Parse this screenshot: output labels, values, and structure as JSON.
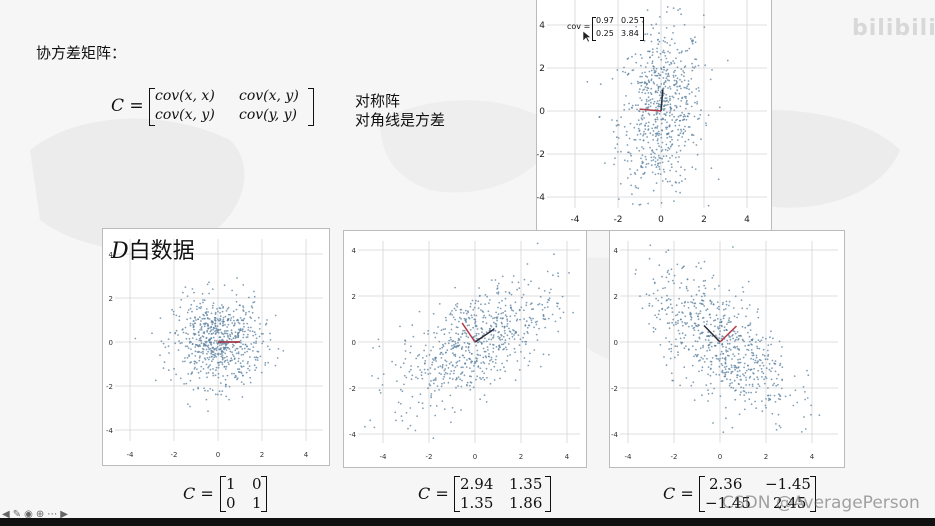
{
  "slide": {
    "heading": "协方差矩阵：",
    "cov_matrix": {
      "lhs": "C =",
      "rows": [
        [
          "cov(x, x)",
          "cov(x, y)"
        ],
        [
          "cov(x, y)",
          "cov(y, y)"
        ]
      ]
    },
    "notes": [
      "对称阵",
      "对角线是方差"
    ],
    "white_title_letter": "D",
    "white_title_text": "白数据",
    "logo": "bilibili",
    "watermark": "CSDN @AveragePerson"
  },
  "top_plot": {
    "cov_prefix": "cov =",
    "cov_values": [
      [
        "0.97",
        "0.25"
      ],
      [
        "0.25",
        "3.84"
      ]
    ],
    "x_ticks": [
      "-4",
      "-2",
      "0",
      "2",
      "4"
    ],
    "y_ticks": [
      "4",
      "2",
      "0",
      "-2",
      "-4"
    ]
  },
  "plots": [
    {
      "matrix_lhs": "C =",
      "matrix": [
        [
          "1",
          "0"
        ],
        [
          "0",
          "1"
        ]
      ],
      "x_ticks": [
        "-4",
        "-2",
        "0",
        "2",
        "4"
      ],
      "y_ticks": [
        "4",
        "2",
        "0",
        "-2",
        "-4"
      ]
    },
    {
      "matrix_lhs": "C =",
      "matrix": [
        [
          "2.94",
          "1.35"
        ],
        [
          "1.35",
          "1.86"
        ]
      ],
      "x_ticks": [
        "-4",
        "-2",
        "0",
        "2",
        "4"
      ],
      "y_ticks": [
        "4",
        "2",
        "0",
        "-2",
        "-4"
      ]
    },
    {
      "matrix_lhs": "C =",
      "matrix": [
        [
          "2.36",
          "−1.45"
        ],
        [
          "−1.45",
          "2.45"
        ]
      ],
      "x_ticks": [
        "-4",
        "-2",
        "0",
        "2",
        "4"
      ],
      "y_ticks": [
        "4",
        "2",
        "0",
        "-2",
        "-4"
      ]
    }
  ],
  "chart_data": [
    {
      "type": "scatter",
      "title": "",
      "xlim": [
        -5,
        5
      ],
      "ylim": [
        -5,
        5
      ],
      "grid": true,
      "covariance": [
        [
          0.97,
          0.25
        ],
        [
          0.25,
          3.84
        ]
      ],
      "n_points": 1000
    },
    {
      "type": "scatter",
      "title": "",
      "xlim": [
        -5,
        5
      ],
      "ylim": [
        -5,
        5
      ],
      "grid": true,
      "covariance": [
        [
          1,
          0
        ],
        [
          0,
          1
        ]
      ],
      "n_points": 1000
    },
    {
      "type": "scatter",
      "title": "",
      "xlim": [
        -5,
        5
      ],
      "ylim": [
        -5,
        5
      ],
      "grid": true,
      "covariance": [
        [
          2.94,
          1.35
        ],
        [
          1.35,
          1.86
        ]
      ],
      "n_points": 1000
    },
    {
      "type": "scatter",
      "title": "",
      "xlim": [
        -5,
        5
      ],
      "ylim": [
        -5,
        5
      ],
      "grid": true,
      "covariance": [
        [
          2.36,
          -1.45
        ],
        [
          -1.45,
          2.45
        ]
      ],
      "n_points": 1000
    }
  ],
  "colors": {
    "points": "#5a7f9e",
    "vector_a": "#2b2b38",
    "vector_b": "#b03a4a",
    "grid": "#d5d5d5"
  },
  "toolbar_icons": [
    "arrow-left-icon",
    "pen-icon",
    "pointer-icon",
    "zoom-icon",
    "more-icon",
    "arrow-right-icon"
  ]
}
